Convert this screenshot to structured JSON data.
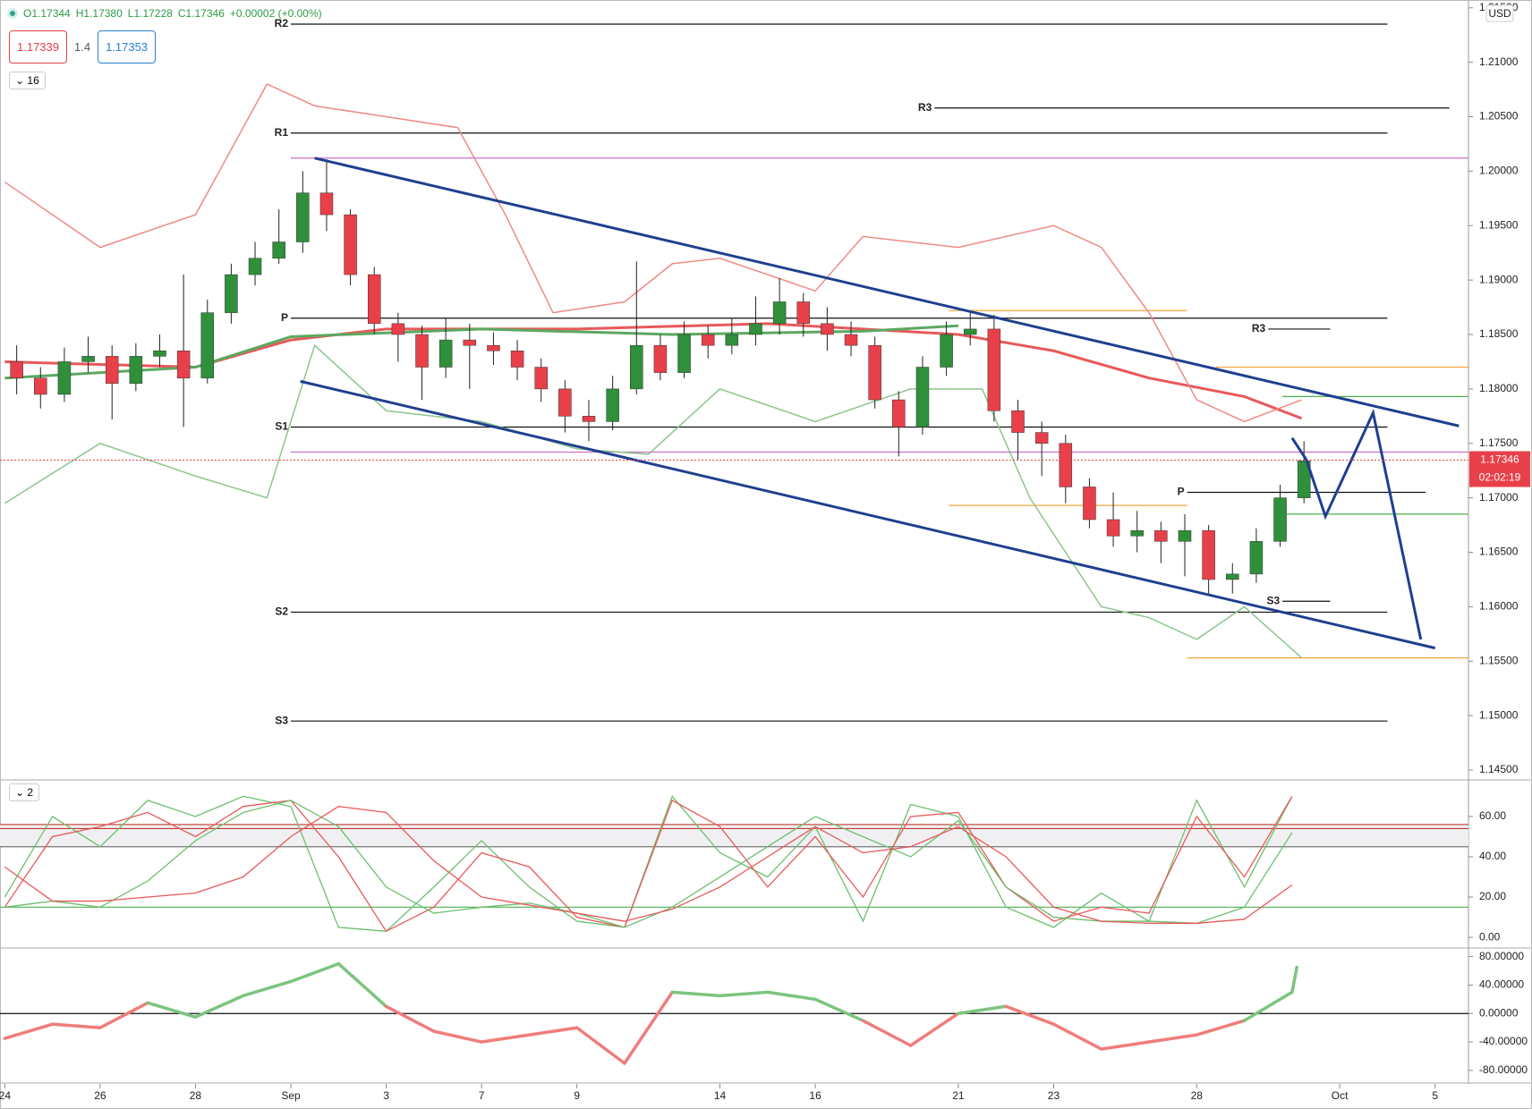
{
  "header": {
    "ohlc": [
      "O1.17344",
      "H1.17380",
      "L1.17228",
      "C1.17346"
    ],
    "change": "+0.00002 (+0.00%)",
    "sell": "1.17339",
    "spread": "1.4",
    "buy": "1.17353"
  },
  "chart_data": [
    {
      "type": "candlestick",
      "legend_badge": "16",
      "currency": "USD",
      "last_price": 1.17346,
      "countdown": "02:02:19",
      "up_color": "#2f8f3a",
      "down_color": "#e8404a",
      "xlim": [
        -0.1,
        30.7
      ],
      "ylim": [
        1.14426,
        1.21572
      ],
      "xticks": [
        {
          "value": 0,
          "label": "24"
        },
        {
          "value": 2,
          "label": "26"
        },
        {
          "value": 4,
          "label": "28"
        },
        {
          "value": 6,
          "label": "Sep"
        },
        {
          "value": 8,
          "label": "3"
        },
        {
          "value": 10,
          "label": "7"
        },
        {
          "value": 12,
          "label": "9"
        },
        {
          "value": 15,
          "label": "14"
        },
        {
          "value": 17,
          "label": "16"
        },
        {
          "value": 20,
          "label": "21"
        },
        {
          "value": 22,
          "label": "23"
        },
        {
          "value": 25,
          "label": "28"
        },
        {
          "value": 28,
          "label": "Oct"
        },
        {
          "value": 30,
          "label": "5"
        }
      ],
      "yticks": [
        {
          "value": 1.145,
          "label": "1.14500"
        },
        {
          "value": 1.15,
          "label": "1.15000"
        },
        {
          "value": 1.155,
          "label": "1.15500"
        },
        {
          "value": 1.16,
          "label": "1.16000"
        },
        {
          "value": 1.165,
          "label": "1.16500"
        },
        {
          "value": 1.17,
          "label": "1.17000"
        },
        {
          "value": 1.175,
          "label": "1.17500"
        },
        {
          "value": 1.18,
          "label": "1.18000"
        },
        {
          "value": 1.185,
          "label": "1.18500"
        },
        {
          "value": 1.19,
          "label": "1.19000"
        },
        {
          "value": 1.195,
          "label": "1.19500"
        },
        {
          "value": 1.2,
          "label": "1.20000"
        },
        {
          "value": 1.205,
          "label": "1.20500"
        },
        {
          "value": 1.21,
          "label": "1.21000"
        },
        {
          "value": 1.215,
          "label": "1.21500"
        }
      ],
      "x": [
        0.25,
        0.75,
        1.25,
        1.75,
        2.25,
        2.75,
        3.25,
        3.75,
        4.25,
        4.75,
        5.25,
        5.75,
        6.25,
        6.75,
        7.25,
        7.75,
        8.25,
        8.75,
        9.25,
        9.75,
        10.25,
        10.75,
        11.25,
        11.75,
        12.25,
        12.75,
        13.25,
        13.75,
        14.25,
        14.75,
        15.25,
        15.75,
        16.25,
        16.75,
        17.25,
        17.75,
        18.25,
        18.75,
        19.25,
        19.75,
        20.25,
        20.75,
        21.25,
        21.75,
        22.25,
        22.75,
        23.25,
        23.75,
        24.25,
        24.75,
        25.25,
        25.75,
        26.25,
        26.75,
        27.25
      ],
      "open": [
        1.1825,
        1.181,
        1.1795,
        1.1825,
        1.183,
        1.1805,
        1.183,
        1.1835,
        1.181,
        1.187,
        1.1905,
        1.192,
        1.1935,
        1.198,
        1.196,
        1.1905,
        1.186,
        1.185,
        1.182,
        1.1845,
        1.184,
        1.1835,
        1.182,
        1.18,
        1.1775,
        1.177,
        1.18,
        1.184,
        1.1815,
        1.185,
        1.184,
        1.185,
        1.186,
        1.188,
        1.186,
        1.185,
        1.184,
        1.179,
        1.1765,
        1.182,
        1.185,
        1.1855,
        1.178,
        1.176,
        1.175,
        1.171,
        1.168,
        1.1665,
        1.167,
        1.166,
        1.167,
        1.1625,
        1.163,
        1.166,
        1.17
      ],
      "high": [
        1.184,
        1.182,
        1.1838,
        1.1848,
        1.184,
        1.1842,
        1.185,
        1.1905,
        1.1882,
        1.1915,
        1.1935,
        1.1965,
        1.2,
        1.2011,
        1.1965,
        1.1912,
        1.187,
        1.1858,
        1.1865,
        1.186,
        1.1852,
        1.1845,
        1.1828,
        1.1808,
        1.179,
        1.1812,
        1.1917,
        1.185,
        1.1862,
        1.1858,
        1.1865,
        1.1885,
        1.1902,
        1.1888,
        1.1875,
        1.1862,
        1.1848,
        1.1798,
        1.183,
        1.1862,
        1.1872,
        1.1868,
        1.179,
        1.177,
        1.1758,
        1.1718,
        1.1705,
        1.1688,
        1.1678,
        1.1685,
        1.1675,
        1.164,
        1.1672,
        1.1712,
        1.1752
      ],
      "low": [
        1.1795,
        1.1782,
        1.1788,
        1.1815,
        1.1772,
        1.1798,
        1.182,
        1.1765,
        1.1805,
        1.186,
        1.1895,
        1.1915,
        1.1925,
        1.1945,
        1.1895,
        1.185,
        1.1825,
        1.179,
        1.181,
        1.18,
        1.1822,
        1.1808,
        1.1788,
        1.176,
        1.1752,
        1.1762,
        1.1795,
        1.1808,
        1.181,
        1.1828,
        1.1832,
        1.184,
        1.185,
        1.1848,
        1.1835,
        1.183,
        1.1782,
        1.1738,
        1.1758,
        1.1812,
        1.184,
        1.177,
        1.1735,
        1.172,
        1.1695,
        1.1672,
        1.1655,
        1.165,
        1.164,
        1.1628,
        1.1612,
        1.1612,
        1.1622,
        1.1655,
        1.1695
      ],
      "close": [
        1.181,
        1.1795,
        1.1825,
        1.183,
        1.1805,
        1.183,
        1.1835,
        1.181,
        1.187,
        1.1905,
        1.192,
        1.1935,
        1.198,
        1.196,
        1.1905,
        1.186,
        1.185,
        1.182,
        1.1845,
        1.184,
        1.1835,
        1.182,
        1.18,
        1.1775,
        1.177,
        1.18,
        1.184,
        1.1815,
        1.185,
        1.184,
        1.185,
        1.186,
        1.188,
        1.186,
        1.185,
        1.184,
        1.179,
        1.1765,
        1.182,
        1.185,
        1.1855,
        1.178,
        1.176,
        1.175,
        1.171,
        1.168,
        1.1665,
        1.167,
        1.166,
        1.167,
        1.1625,
        1.163,
        1.166,
        1.17,
        1.1734
      ],
      "overlays": [
        {
          "color": "#e8585a",
          "width": 3,
          "x": [
            0,
            4,
            6,
            8,
            12,
            16,
            20,
            22,
            24,
            26,
            27.2
          ],
          "values": [
            1.1825,
            1.182,
            1.1845,
            1.1855,
            1.1855,
            1.186,
            1.185,
            1.1835,
            1.181,
            1.1793,
            1.1773
          ]
        },
        {
          "color": "#5ca862",
          "width": 3,
          "x": [
            0,
            4,
            6,
            10,
            14,
            18,
            20
          ],
          "values": [
            1.181,
            1.182,
            1.1848,
            1.1855,
            1.185,
            1.1853,
            1.1858
          ]
        },
        {
          "color": "#ee8a85",
          "width": 1.5,
          "x": [
            0,
            2,
            4,
            5.5,
            6.5,
            8,
            9.5,
            10.5,
            11.5,
            13,
            14,
            15,
            17,
            18,
            20,
            22,
            23,
            24,
            25,
            26,
            27.2
          ],
          "values": [
            1.199,
            1.193,
            1.196,
            1.208,
            1.206,
            1.205,
            1.204,
            1.196,
            1.187,
            1.188,
            1.1915,
            1.192,
            1.189,
            1.194,
            1.193,
            1.195,
            1.193,
            1.187,
            1.179,
            1.177,
            1.179
          ]
        },
        {
          "color": "#8cc58e",
          "width": 1.5,
          "x": [
            0,
            2,
            4,
            5.5,
            6.5,
            8,
            10,
            12,
            13.5,
            15,
            17,
            19,
            20.5,
            21.5,
            23,
            24,
            25,
            26,
            27.2
          ],
          "values": [
            1.1695,
            1.175,
            1.172,
            1.17,
            1.184,
            1.178,
            1.177,
            1.1745,
            1.174,
            1.18,
            1.177,
            1.18,
            1.18,
            1.17,
            1.16,
            1.159,
            1.157,
            1.16,
            1.1553
          ]
        }
      ],
      "levels": [
        {
          "label": "R2",
          "value": 1.2135,
          "from": 6,
          "to": 29,
          "color": "#111111"
        },
        {
          "label": "R1",
          "value": 1.2035,
          "from": 6,
          "to": 29,
          "color": "#111111"
        },
        {
          "label": "P",
          "value": 1.1865,
          "from": 6,
          "to": 29,
          "color": "#111111"
        },
        {
          "label": "S1",
          "value": 1.1765,
          "from": 6,
          "to": 29,
          "color": "#111111"
        },
        {
          "label": "S2",
          "value": 1.1595,
          "from": 6,
          "to": 29,
          "color": "#111111"
        },
        {
          "label": "S3",
          "value": 1.1495,
          "from": 6,
          "to": 29,
          "color": "#111111"
        },
        {
          "label": "R3",
          "value": 1.2058,
          "from": 19.5,
          "to": 30.3,
          "color": "#111111"
        },
        {
          "label": "R3",
          "value": 1.1855,
          "from": 26.5,
          "to": 27.8,
          "color": "#111111"
        },
        {
          "label": "P",
          "value": 1.1705,
          "from": 24.8,
          "to": 29.8,
          "color": "#111111"
        },
        {
          "label": "S3",
          "value": 1.1605,
          "from": 26.8,
          "to": 27.8,
          "color": "#111111"
        },
        {
          "value": 1.2012,
          "from": 6,
          "to": 30.7,
          "color": "#c86fc8"
        },
        {
          "value": 1.1742,
          "from": 6,
          "to": 30.7,
          "color": "#c86fc8"
        },
        {
          "value": 1.1872,
          "from": 19.8,
          "to": 24.8,
          "color": "#f0a640"
        },
        {
          "value": 1.182,
          "from": 25.4,
          "to": 30.7,
          "color": "#f0a640"
        },
        {
          "value": 1.1693,
          "from": 19.8,
          "to": 24.8,
          "color": "#f0a640"
        },
        {
          "value": 1.1553,
          "from": 24.8,
          "to": 30.7,
          "color": "#f0a640"
        },
        {
          "value": 1.1793,
          "from": 26.8,
          "to": 30.7,
          "color": "#4caf50"
        },
        {
          "value": 1.1685,
          "from": 26.8,
          "to": 30.7,
          "color": "#4caf50"
        }
      ],
      "trendlines": [
        {
          "color": "#1e3f8f",
          "x": [
            6.5,
            30.5
          ],
          "values": [
            1.2012,
            1.1766
          ]
        },
        {
          "color": "#1e3f8f",
          "x": [
            6.2,
            30
          ],
          "values": [
            1.1807,
            1.1562
          ]
        },
        {
          "color": "#1e3f8f",
          "x": [
            27,
            27.3,
            27.7,
            28.7,
            29.7
          ],
          "values": [
            1.1755,
            1.1735,
            1.1683,
            1.1778,
            1.157
          ]
        }
      ]
    },
    {
      "type": "line",
      "legend_badge": "2",
      "ylim": [
        -4.4,
        76.4
      ],
      "yticks": [
        {
          "value": 0,
          "label": "0.00"
        },
        {
          "value": 20,
          "label": "20.00"
        },
        {
          "value": 40,
          "label": "40.00"
        },
        {
          "value": 60,
          "label": "60.00"
        }
      ],
      "band": [
        45,
        56
      ],
      "levels": [
        {
          "value": 56,
          "color": "#c0392b"
        },
        {
          "value": 54,
          "color": "#c0392b"
        },
        {
          "value": 45,
          "color": "#777777"
        },
        {
          "value": 15,
          "color": "#4caf50"
        }
      ],
      "x": [
        0,
        1,
        2,
        3,
        4,
        5,
        6,
        7,
        8,
        9,
        10,
        11,
        12,
        13,
        14,
        15,
        16,
        17,
        18,
        19,
        20,
        21,
        22,
        23,
        24,
        25,
        26,
        27
      ],
      "series": [
        {
          "color": "#6cbf6e",
          "values": [
            20,
            60,
            45,
            68,
            60,
            70,
            65,
            5,
            3,
            25,
            48,
            25,
            8,
            5,
            70,
            42,
            30,
            55,
            8,
            66,
            60,
            15,
            5,
            22,
            8,
            68,
            25,
            70
          ]
        },
        {
          "color": "#e8585a",
          "values": [
            15,
            50,
            55,
            62,
            50,
            65,
            68,
            40,
            3,
            15,
            42,
            35,
            10,
            5,
            68,
            55,
            25,
            50,
            20,
            60,
            62,
            25,
            8,
            15,
            12,
            60,
            30,
            70
          ]
        },
        {
          "color": "#6cbf6e",
          "values": [
            15,
            18,
            15,
            28,
            48,
            62,
            68,
            55,
            25,
            12,
            15,
            17,
            12,
            5,
            15,
            30,
            45,
            60,
            50,
            40,
            58,
            25,
            10,
            8,
            8,
            7,
            15,
            52
          ]
        },
        {
          "color": "#e8585a",
          "values": [
            35,
            18,
            18,
            20,
            22,
            30,
            50,
            65,
            62,
            38,
            20,
            16,
            12,
            8,
            14,
            25,
            40,
            55,
            42,
            45,
            55,
            40,
            15,
            8,
            7,
            7,
            9,
            26
          ]
        }
      ]
    },
    {
      "type": "momentum",
      "ylim": [
        -95.3,
        89.6
      ],
      "yticks": [
        {
          "value": -80,
          "label": "-80.00000"
        },
        {
          "value": -40,
          "label": "-40.00000"
        },
        {
          "value": 0,
          "label": "0.00000"
        },
        {
          "value": 40,
          "label": "40.00000"
        },
        {
          "value": 80,
          "label": "80.00000"
        }
      ],
      "levels": [
        {
          "value": 0,
          "color": "#111111"
        }
      ],
      "pos_color": "#7cc47e",
      "neg_color": "#ef7d7a",
      "x": [
        0,
        1,
        2,
        3,
        4,
        5,
        6,
        7,
        8,
        9,
        10,
        11,
        12,
        13,
        14,
        15,
        16,
        17,
        18,
        19,
        20,
        21,
        22,
        23,
        24,
        25,
        26,
        27,
        27.1
      ],
      "values": [
        -35,
        -15,
        -20,
        15,
        -5,
        25,
        45,
        70,
        10,
        -25,
        -40,
        -30,
        -20,
        -70,
        30,
        25,
        30,
        20,
        -10,
        -45,
        0,
        10,
        -15,
        -50,
        -40,
        -30,
        -10,
        30,
        65
      ]
    }
  ]
}
